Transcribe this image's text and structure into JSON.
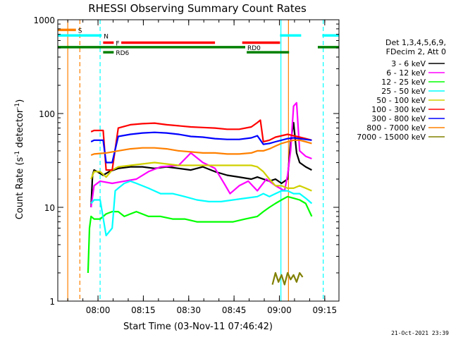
{
  "chart_data": {
    "type": "line",
    "title": "RHESSI Observing Summary Count Rates",
    "xlabel": "Start Time (03-Nov-11 07:46:42)",
    "ylabel_prefix": "Count Rate (s",
    "ylabel_sup1": "-1",
    "ylabel_mid": " detector",
    "ylabel_sup2": "-1",
    "ylabel_suffix": ")",
    "x_unit": "minutes after 07:46:42",
    "xlim": [
      0,
      93
    ],
    "ylim": [
      1,
      1000
    ],
    "yscale": "log",
    "x_ticks": [
      {
        "x": 13.3,
        "label": "08:00"
      },
      {
        "x": 28.3,
        "label": "08:15"
      },
      {
        "x": 43.3,
        "label": "08:30"
      },
      {
        "x": 58.3,
        "label": "08:45"
      },
      {
        "x": 73.3,
        "label": "09:00"
      },
      {
        "x": 88.3,
        "label": "09:15"
      }
    ],
    "y_ticks": [
      {
        "y": 1,
        "label": "1"
      },
      {
        "y": 10,
        "label": "10"
      },
      {
        "y": 100,
        "label": "100"
      },
      {
        "y": 1000,
        "label": "1000"
      }
    ],
    "legend_header": [
      "Det 1,3,4,5,6,9,",
      "FDecim 2, Att 0"
    ],
    "series": [
      {
        "name": "3 - 6 keV",
        "color": "#000000",
        "x": [
          11,
          11.5,
          12,
          13,
          15,
          17,
          20,
          24,
          28,
          32,
          36,
          40,
          44,
          48,
          52,
          56,
          60,
          64,
          66,
          68,
          70,
          72,
          74,
          76,
          77,
          78,
          79,
          80,
          82,
          84
        ],
        "y": [
          10,
          22,
          25,
          24,
          22,
          24,
          26,
          27,
          27,
          26,
          27,
          26,
          25,
          27,
          24,
          22,
          21,
          20,
          21,
          20,
          19,
          20,
          18,
          20,
          50,
          80,
          38,
          30,
          27,
          25
        ]
      },
      {
        "name": "6 - 12 keV",
        "color": "#ff00ff",
        "x": [
          11,
          12,
          14,
          18,
          22,
          26,
          30,
          34,
          40,
          44,
          48,
          52,
          55,
          57,
          60,
          63,
          66,
          69,
          72,
          75,
          76,
          77,
          78,
          79,
          80,
          82,
          84
        ],
        "y": [
          10,
          17,
          19,
          18,
          19,
          20,
          24,
          27,
          28,
          38,
          30,
          26,
          18,
          14,
          17,
          19,
          15,
          20,
          17,
          15,
          22,
          40,
          120,
          130,
          40,
          35,
          33
        ]
      },
      {
        "name": "12 - 25 keV",
        "color": "#00ff00",
        "x": [
          10,
          10.5,
          11,
          12,
          14,
          16,
          18,
          20,
          22,
          24,
          26,
          30,
          34,
          38,
          42,
          46,
          50,
          54,
          58,
          62,
          66,
          68,
          70,
          72,
          74,
          76,
          78,
          80,
          82,
          84
        ],
        "y": [
          2,
          6,
          8,
          7.5,
          7.5,
          8.5,
          9,
          9,
          8,
          8.5,
          9,
          8,
          8,
          7.5,
          7.5,
          7,
          7,
          7,
          7,
          7.5,
          8,
          9,
          10,
          11,
          12,
          13,
          12.5,
          12,
          11,
          8
        ]
      },
      {
        "name": "25 - 50 keV",
        "color": "#00ffff",
        "x": [
          11,
          12,
          14,
          16,
          18,
          19,
          20,
          22,
          24,
          26,
          30,
          34,
          38,
          42,
          46,
          50,
          54,
          58,
          62,
          66,
          68,
          70,
          72,
          74,
          76,
          78,
          80,
          82,
          84
        ],
        "y": [
          11,
          12,
          12,
          5,
          6,
          15,
          16,
          18,
          19,
          18,
          16,
          14,
          14,
          13,
          12,
          11.5,
          11.5,
          12,
          12.5,
          13,
          14,
          13,
          14,
          15,
          15,
          14,
          14,
          12.5,
          11
        ]
      },
      {
        "name": "50 - 100 keV",
        "color": "#d0d000",
        "x": [
          11,
          12,
          14,
          16,
          18,
          20,
          24,
          28,
          32,
          36,
          40,
          44,
          48,
          52,
          56,
          60,
          64,
          66,
          68,
          70,
          72,
          74,
          76,
          78,
          80,
          82,
          84
        ],
        "y": [
          20,
          24,
          24,
          21,
          25,
          27,
          28,
          29,
          30,
          29,
          28,
          28,
          28,
          28,
          28,
          28,
          28,
          27,
          24,
          20,
          17,
          17,
          16,
          16,
          17,
          16,
          15
        ]
      },
      {
        "name": "100 - 300 keV",
        "color": "#ff0000",
        "x": [
          11,
          12,
          15,
          16,
          18,
          20,
          24,
          28,
          32,
          36,
          40,
          44,
          48,
          52,
          56,
          60,
          64,
          66,
          67,
          68,
          70,
          72,
          74,
          76,
          78,
          80,
          82,
          84
        ],
        "y": [
          64,
          66,
          66,
          25,
          25,
          70,
          76,
          78,
          79,
          76,
          74,
          72,
          71,
          70,
          68,
          68,
          72,
          80,
          85,
          50,
          52,
          56,
          58,
          60,
          58,
          56,
          54,
          52
        ]
      },
      {
        "name": "300 - 800 keV",
        "color": "#0000ff",
        "x": [
          11,
          12,
          15,
          16,
          18,
          20,
          24,
          28,
          32,
          36,
          40,
          44,
          48,
          52,
          56,
          60,
          64,
          66,
          68,
          70,
          72,
          74,
          76,
          78,
          80,
          82,
          84
        ],
        "y": [
          50,
          52,
          52,
          30,
          30,
          57,
          60,
          62,
          63,
          62,
          60,
          57,
          56,
          54,
          53,
          53,
          55,
          58,
          47,
          48,
          50,
          52,
          54,
          55,
          54,
          53,
          52
        ]
      },
      {
        "name": "800 - 7000 keV",
        "color": "#ff8000",
        "x": [
          11,
          12,
          16,
          20,
          24,
          28,
          32,
          36,
          40,
          44,
          48,
          52,
          56,
          60,
          64,
          66,
          68,
          70,
          72,
          74,
          76,
          78,
          80,
          82,
          84
        ],
        "y": [
          36,
          37,
          38,
          40,
          42,
          43,
          43,
          42,
          40,
          39,
          38,
          38,
          37,
          37,
          38,
          40,
          40,
          42,
          45,
          48,
          50,
          52,
          52,
          50,
          48
        ]
      },
      {
        "name": "7000 - 15000 keV",
        "color": "#808000",
        "x": [
          71,
          72,
          73,
          74,
          75,
          76,
          77,
          78,
          79,
          80,
          81
        ],
        "y": [
          1.5,
          2,
          1.6,
          1.9,
          1.5,
          2,
          1.7,
          1.9,
          1.6,
          2,
          1.8
        ]
      }
    ],
    "flag_bars": [
      {
        "label": "S",
        "color": "#ff8000",
        "level": 780,
        "segments": [
          [
            0,
            6
          ]
        ]
      },
      {
        "label": "N",
        "color": "#00ffff",
        "level": 680,
        "segments": [
          [
            0,
            14.5
          ],
          [
            73.5,
            80.5
          ],
          [
            87.5,
            93
          ]
        ]
      },
      {
        "label": "F",
        "color": "#ff0000",
        "level": 570,
        "segments": [
          [
            15,
            18.5
          ],
          [
            21,
            52
          ],
          [
            61,
            73.5
          ]
        ]
      },
      {
        "label": "RD0",
        "color": "#008000",
        "level": 510,
        "segments": [
          [
            0,
            62
          ],
          [
            86,
            93
          ]
        ]
      },
      {
        "label": "RD6",
        "color": "#008000",
        "level": 450,
        "segments": [
          [
            15,
            18.5
          ],
          [
            62.5,
            76.5
          ]
        ]
      }
    ],
    "vertical_lines": [
      {
        "x": 3.3,
        "color": "#ff8000",
        "style": "solid"
      },
      {
        "x": 7.3,
        "color": "#ff8000",
        "style": "dashed"
      },
      {
        "x": 14,
        "color": "#00ffff",
        "style": "dashed"
      },
      {
        "x": 73.8,
        "color": "#00ffff",
        "style": "solid"
      },
      {
        "x": 76.3,
        "color": "#ff8000",
        "style": "solid"
      },
      {
        "x": 87.8,
        "color": "#00ffff",
        "style": "dashed"
      }
    ]
  },
  "footer": {
    "timestamp": "21-Oct-2021 23:39"
  }
}
